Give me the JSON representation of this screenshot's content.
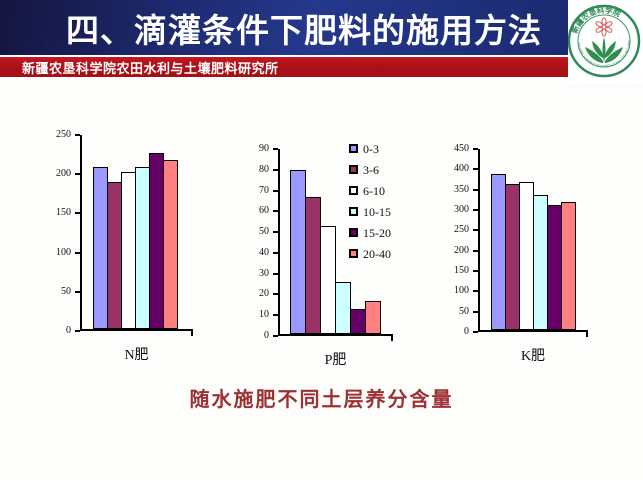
{
  "header": {
    "title": "四、滴灌条件下肥料的施用方法",
    "subtitle": "新疆农垦科学院农田水利与土壤肥料研究所"
  },
  "logo": {
    "arc_text_top": "新疆农垦科学院",
    "arc_text_bottom": "XINJIANG ACADEMY OF AGRICULTURAL AND RECLAMATION SCIENCE",
    "ring_color": "#2e8b57",
    "flower_color": "#d45c5c"
  },
  "caption": "随水施肥不同土层养分含量",
  "chart_data": {
    "type": "bar",
    "grid": false,
    "legend_position": "right-of-middle-chart",
    "series_labels": [
      "0-3",
      "3-6",
      "6-10",
      "10-15",
      "15-20",
      "20-40"
    ],
    "series_colors": [
      "#9999FF",
      "#993366",
      "#FFFFFF",
      "#CCFFFF",
      "#660066",
      "#FF8080"
    ],
    "charts": [
      {
        "title": "N肥",
        "ylim": [
          0,
          250
        ],
        "ytick_step": 50,
        "values": [
          207,
          187,
          200,
          207,
          225,
          216
        ]
      },
      {
        "title": "P肥",
        "ylim": [
          0,
          90
        ],
        "ytick_step": 10,
        "values": [
          79,
          66,
          52,
          25,
          12,
          16
        ]
      },
      {
        "title": "K肥",
        "ylim": [
          0,
          450
        ],
        "ytick_step": 50,
        "values": [
          383,
          358,
          365,
          332,
          307,
          315
        ]
      }
    ]
  }
}
